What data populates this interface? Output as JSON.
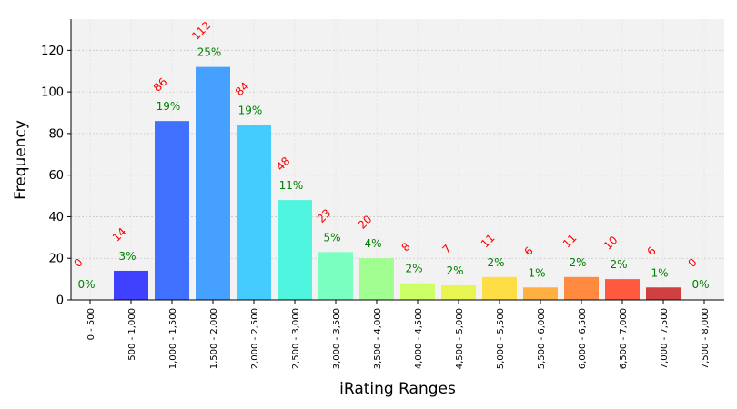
{
  "chart_data": {
    "type": "bar",
    "title": "",
    "xlabel": "iRating Ranges",
    "ylabel": "Frequency",
    "ylim": [
      0,
      135
    ],
    "yticks": [
      0,
      20,
      40,
      60,
      80,
      100,
      120
    ],
    "grid": true,
    "categories": [
      "0 - 500",
      "500 - 1,000",
      "1,000 - 1,500",
      "1,500 - 2,000",
      "2,000 - 2,500",
      "2,500 - 3,000",
      "3,000 - 3,500",
      "3,500 - 4,000",
      "4,000 - 4,500",
      "4,500 - 5,000",
      "5,000 - 5,500",
      "5,500 - 6,000",
      "6,000 - 6,500",
      "6,500 - 7,000",
      "7,000 - 7,500",
      "7,500 - 8,000"
    ],
    "values": [
      0,
      14,
      86,
      112,
      84,
      48,
      23,
      20,
      8,
      7,
      11,
      6,
      11,
      10,
      6,
      0
    ],
    "count_labels": [
      "0",
      "14",
      "86",
      "112",
      "84",
      "48",
      "23",
      "20",
      "8",
      "7",
      "11",
      "6",
      "11",
      "10",
      "6",
      "0"
    ],
    "percent_labels": [
      "0%",
      "3%",
      "19%",
      "25%",
      "19%",
      "11%",
      "5%",
      "4%",
      "2%",
      "2%",
      "2%",
      "1%",
      "2%",
      "2%",
      "1%",
      "0%"
    ],
    "bar_colors": [
      "#4040ff",
      "#4040ff",
      "#4070ff",
      "#45a0ff",
      "#45ccff",
      "#50f5e0",
      "#7affc0",
      "#a0ff90",
      "#ccff66",
      "#e8f550",
      "#ffdd44",
      "#ffb040",
      "#ff8a40",
      "#ff5a40",
      "#d04040",
      "#c03030"
    ],
    "count_label_color": "#ff0000",
    "percent_label_color": "#008000",
    "plot_background": "#f2f2f2"
  }
}
